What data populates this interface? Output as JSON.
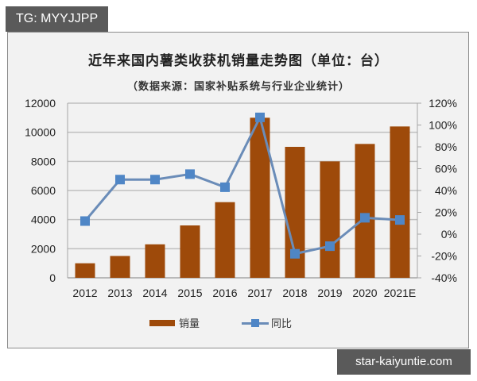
{
  "badge": {
    "text": "TG: MYYJJPP"
  },
  "watermark": {
    "text": "star-kaiyuntie.com"
  },
  "colors": {
    "bar": "#9e4a0a",
    "line": "#6a8cb8",
    "marker": "#4f86c6",
    "grid": "#bfbfbf",
    "frame_bg": "#f2f2f2"
  },
  "chart_data": {
    "type": "bar",
    "title": "近年来国内薯类收获机销量走势图（单位：台）",
    "subtitle": "（数据来源：国家补贴系统与行业企业统计）",
    "categories": [
      "2012",
      "2013",
      "2014",
      "2015",
      "2016",
      "2017",
      "2018",
      "2019",
      "2020",
      "2021E"
    ],
    "series": [
      {
        "name": "销量",
        "type": "bar",
        "axis": "left",
        "values": [
          1000,
          1500,
          2300,
          3600,
          5200,
          11000,
          9000,
          8000,
          9200,
          10400
        ]
      },
      {
        "name": "同比",
        "type": "line",
        "axis": "right",
        "values": [
          12,
          50,
          50,
          55,
          43,
          107,
          -18,
          -11,
          15,
          13
        ]
      }
    ],
    "xlabel": "",
    "ylabel": "",
    "ylim": [
      0,
      12000
    ],
    "y_ticks": [
      "0",
      "2000",
      "4000",
      "6000",
      "8000",
      "10000",
      "12000"
    ],
    "y2lim": [
      -40,
      120
    ],
    "y2_ticks": [
      "-40%",
      "-20%",
      "0%",
      "20%",
      "40%",
      "60%",
      "80%",
      "100%",
      "120%"
    ],
    "grid": true,
    "legend_position": "bottom",
    "legend": [
      "销量",
      "同比"
    ]
  }
}
